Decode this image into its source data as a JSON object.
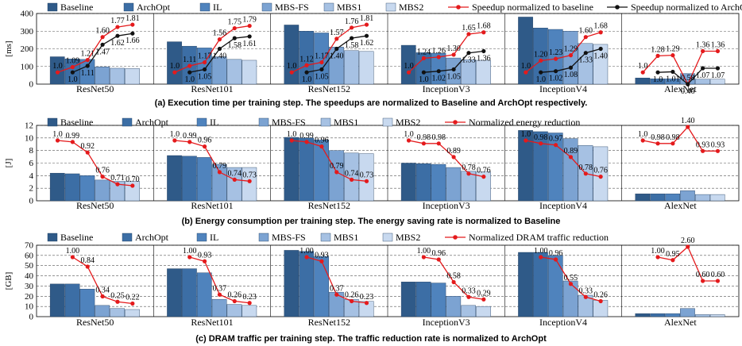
{
  "colors": {
    "bars": [
      "#2f5a88",
      "#3c6ea5",
      "#4f83bd",
      "#7ca3d2",
      "#a6c1e3",
      "#c8d9ef"
    ],
    "speedup_baseline": "#e41a1c",
    "speedup_archopt": "#111111",
    "energy_line": "#e41a1c",
    "traffic_line": "#e41a1c"
  },
  "chart_data": [
    {
      "id": "exec",
      "type": "bar",
      "ylabel": "[ms]",
      "ylim": [
        0,
        400
      ],
      "yticks": [
        0,
        100,
        200,
        300,
        400
      ],
      "grid": true,
      "legend": [
        "Baseline",
        "ArchOpt",
        "IL",
        "MBS-FS",
        "MBS1",
        "MBS2",
        "Speedup normalized to baseline",
        "Speedup normalized to ArchOpt"
      ],
      "categories": [
        "ResNet50",
        "ResNet101",
        "ResNet152",
        "InceptionV3",
        "InceptionV4",
        "AlexNet"
      ],
      "series": [
        {
          "name": "Baseline",
          "values": [
            155,
            240,
            335,
            220,
            380,
            35
          ]
        },
        {
          "name": "ArchOpt",
          "values": [
            143,
            215,
            300,
            178,
            318,
            30
          ]
        },
        {
          "name": "IL",
          "values": [
            140,
            205,
            290,
            175,
            310,
            30
          ]
        },
        {
          "name": "MBS-FS",
          "values": [
            98,
            155,
            210,
            148,
            300,
            60
          ]
        },
        {
          "name": "MBS1",
          "values": [
            90,
            140,
            190,
            138,
            230,
            28
          ]
        },
        {
          "name": "MBS2",
          "values": [
            88,
            135,
            185,
            135,
            225,
            28
          ]
        }
      ],
      "lines": [
        {
          "name": "Speedup normalized to baseline",
          "color_key": "speedup_baseline",
          "range": [
            0.8,
            2.0
          ],
          "values": [
            [
              1.0,
              1.09,
              1.21,
              1.6,
              1.77,
              1.81
            ],
            [
              1.0,
              1.11,
              1.17,
              1.56,
              1.75,
              1.79
            ],
            [
              1.0,
              1.12,
              1.17,
              1.57,
              1.76,
              1.81
            ],
            [
              1.0,
              1.24,
              1.26,
              1.3,
              1.65,
              1.68
            ],
            [
              1.0,
              1.2,
              1.23,
              1.29,
              1.6,
              1.68
            ],
            [
              1.0,
              1.28,
              1.29,
              0.58,
              1.36,
              1.36
            ]
          ],
          "labels": [
            [
              "1.0",
              "1.09",
              "1.21",
              "1.60",
              "1.77",
              "1.81"
            ],
            [
              "1.0",
              "1.11",
              "1.17",
              "1.56",
              "1.75",
              "1.79"
            ],
            [
              "1.0",
              "1.12",
              "1.17",
              "1.57",
              "1.76",
              "1.81"
            ],
            [
              "1.0",
              "1.24",
              "1.26",
              "1.30",
              "1.65",
              "1.68"
            ],
            [
              "1.0",
              "1.20",
              "1.23",
              "1.29",
              "1.60",
              "1.68"
            ],
            [
              "1.0",
              "1.28",
              "1.29",
              "0.58",
              "1.36",
              "1.36"
            ]
          ]
        },
        {
          "name": "Speedup normalized to ArchOpt",
          "color_key": "speedup_archopt",
          "range": [
            0.8,
            2.0
          ],
          "start": 1,
          "values": [
            [
              1.0,
              1.11,
              1.47,
              1.62,
              1.66
            ],
            [
              1.0,
              1.05,
              1.4,
              1.58,
              1.61
            ],
            [
              1.0,
              1.05,
              1.4,
              1.58,
              1.62
            ],
            [
              1.0,
              1.02,
              1.05,
              1.33,
              1.36
            ],
            [
              1.0,
              1.02,
              1.08,
              1.33,
              1.4
            ],
            [
              1.0,
              1.01,
              0.46,
              1.07,
              1.07
            ]
          ],
          "labels": [
            [
              "1.0",
              "1.11",
              "1.47",
              "1.62",
              "1.66"
            ],
            [
              "1.0",
              "1.05",
              "1.40",
              "1.58",
              "1.61"
            ],
            [
              "1.0",
              "1.05",
              "1.40",
              "1.58",
              "1.62"
            ],
            [
              "1.0",
              "1.02",
              "1.05",
              "1.33",
              "1.36"
            ],
            [
              "1.0",
              "1.02",
              "1.08",
              "1.33",
              "1.40"
            ],
            [
              "1.0",
              "1.01",
              "0.46",
              "1.07",
              "1.07"
            ]
          ]
        }
      ],
      "caption": "(a) Execution time per training step. The speedups are normalized to Baseline and ArchOpt respectively."
    },
    {
      "id": "energy",
      "type": "bar",
      "ylabel": "[J]",
      "ylim": [
        0,
        12
      ],
      "yticks": [
        0,
        2,
        4,
        6,
        8,
        10,
        12
      ],
      "grid": true,
      "legend": [
        "Baseline",
        "ArchOpt",
        "IL",
        "MBS-FS",
        "MBS1",
        "MBS2",
        "Normalized energy reduction"
      ],
      "categories": [
        "ResNet50",
        "ResNet101",
        "ResNet152",
        "InceptionV3",
        "InceptionV4",
        "AlexNet"
      ],
      "series": [
        {
          "name": "Baseline",
          "values": [
            4.4,
            7.2,
            10.1,
            6.0,
            11.2,
            1.1
          ]
        },
        {
          "name": "ArchOpt",
          "values": [
            4.3,
            7.1,
            10.0,
            5.9,
            11.0,
            1.1
          ]
        },
        {
          "name": "IL",
          "values": [
            4.0,
            6.9,
            9.7,
            5.8,
            10.8,
            1.1
          ]
        },
        {
          "name": "MBS-FS",
          "values": [
            3.3,
            5.8,
            8.0,
            5.3,
            9.9,
            1.6
          ]
        },
        {
          "name": "MBS1",
          "values": [
            3.1,
            5.3,
            7.6,
            4.7,
            8.8,
            1.0
          ]
        },
        {
          "name": "MBS2",
          "values": [
            3.1,
            5.3,
            7.5,
            4.6,
            8.6,
            1.0
          ]
        }
      ],
      "lines": [
        {
          "name": "Normalized energy reduction",
          "color_key": "energy_line",
          "range": [
            0.6,
            1.1
          ],
          "values": [
            [
              1.0,
              0.99,
              0.92,
              0.76,
              0.71,
              0.7
            ],
            [
              1.0,
              0.99,
              0.96,
              0.79,
              0.74,
              0.73
            ],
            [
              1.0,
              0.99,
              0.96,
              0.79,
              0.74,
              0.73
            ],
            [
              1.0,
              0.98,
              0.98,
              0.89,
              0.78,
              0.76
            ],
            [
              1.0,
              0.98,
              0.97,
              0.89,
              0.78,
              0.76
            ],
            [
              1.0,
              0.98,
              0.98,
              1.4,
              0.93,
              0.93
            ]
          ],
          "labels": [
            [
              "1.0",
              "0.99",
              "0.92",
              "0.76",
              "0.71",
              "0.70"
            ],
            [
              "1.0",
              "0.99",
              "0.96",
              "0.79",
              "0.74",
              "0.73"
            ],
            [
              "1.0",
              "0.99",
              "0.96",
              "0.79",
              "0.74",
              "0.73"
            ],
            [
              "1.0",
              "0.98",
              "0.98",
              "0.89",
              "0.78",
              "0.76"
            ],
            [
              "1.0",
              "0.98",
              "0.97",
              "0.89",
              "0.78",
              "0.76"
            ],
            [
              "1.0",
              "0.98",
              "0.98",
              "1.40",
              "0.93",
              "0.93"
            ]
          ]
        }
      ],
      "caption": "(b) Energy consumption per training step. The energy saving rate is normalized to Baseline"
    },
    {
      "id": "traffic",
      "type": "bar",
      "ylabel": "[GB]",
      "ylim": [
        0,
        70
      ],
      "yticks": [
        0,
        10,
        20,
        30,
        40,
        50,
        60,
        70
      ],
      "grid": true,
      "legend": [
        "Baseline",
        "ArchOpt",
        "IL",
        "MBS-FS",
        "MBS1",
        "MBS2",
        "Normalized DRAM traffic reduction"
      ],
      "categories": [
        "ResNet50",
        "ResNet101",
        "ResNet152",
        "InceptionV3",
        "InceptionV4",
        "AlexNet"
      ],
      "series": [
        {
          "name": "Baseline",
          "values": [
            32,
            47,
            65,
            34,
            63,
            3
          ]
        },
        {
          "name": "ArchOpt",
          "values": [
            32,
            47,
            64,
            34,
            63,
            3
          ]
        },
        {
          "name": "IL",
          "values": [
            27,
            43,
            59,
            33,
            60,
            3
          ]
        },
        {
          "name": "MBS-FS",
          "values": [
            11,
            17,
            24,
            20,
            35,
            8
          ]
        },
        {
          "name": "MBS1",
          "values": [
            8,
            12,
            17,
            11,
            21,
            2
          ]
        },
        {
          "name": "MBS2",
          "values": [
            7,
            11,
            15,
            10,
            16,
            2
          ]
        }
      ],
      "lines": [
        {
          "name": "Normalized DRAM traffic reduction",
          "color_key": "traffic_line",
          "start": 1,
          "range": [
            0.0,
            1.2
          ],
          "values": [
            [
              1.0,
              0.84,
              0.34,
              0.25,
              0.22
            ],
            [
              1.0,
              0.93,
              0.37,
              0.26,
              0.23
            ],
            [
              1.0,
              0.93,
              0.37,
              0.26,
              0.23
            ],
            [
              1.0,
              0.96,
              0.58,
              0.33,
              0.29
            ],
            [
              1.0,
              0.96,
              0.55,
              0.33,
              0.26
            ],
            [
              1.0,
              0.95,
              2.6,
              0.6,
              0.6
            ]
          ],
          "labels": [
            [
              "1.00",
              "0.84",
              "0.34",
              "0.25",
              "0.22"
            ],
            [
              "1.00",
              "0.93",
              "0.37",
              "0.26",
              "0.23"
            ],
            [
              "1.00",
              "0.93",
              "0.37",
              "0.26",
              "0.23"
            ],
            [
              "1.00",
              "0.96",
              "0.58",
              "0.33",
              "0.29"
            ],
            [
              "1.00",
              "0.96",
              "0.55",
              "0.33",
              "0.26"
            ],
            [
              "1.00",
              "0.95",
              "2.60",
              "0.60",
              "0.60"
            ]
          ]
        }
      ],
      "caption": "(c) DRAM traffic per training step. The traffic reduction rate is normalized to ArchOpt"
    }
  ]
}
